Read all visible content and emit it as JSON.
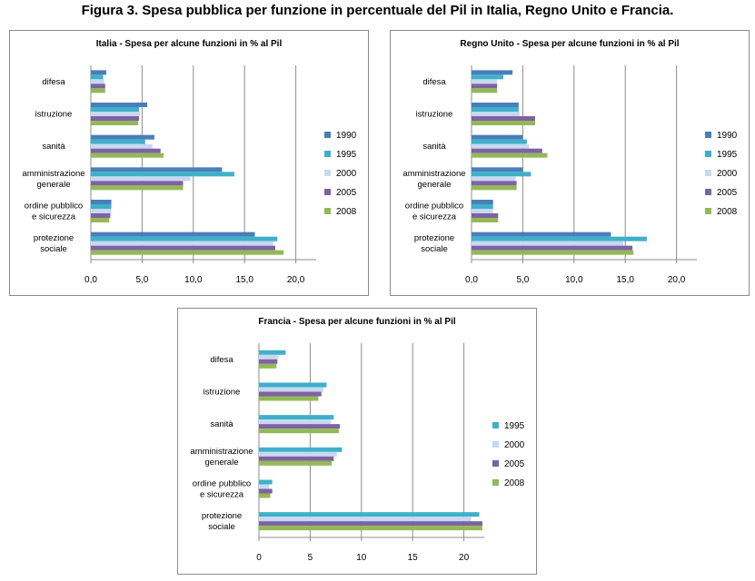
{
  "figure_title": "Figura 3. Spesa pubblica per funzione in percentuale del Pil in Italia, Regno Unito e Francia.",
  "colors": {
    "1990": "#4a7ebb",
    "1995": "#3fb0c9",
    "2000": "#c6d9f1",
    "2005": "#7f62a1",
    "2008": "#92b956",
    "grid": "#8c8c8c",
    "frame": "#8c8c8c"
  },
  "chart_data": [
    {
      "type": "bar",
      "orientation": "horizontal",
      "title": "Italia - Spesa per alcune funzioni in % al Pil",
      "categories": [
        "difesa",
        "istruzione",
        "sanità",
        "amministrazione generale",
        "ordine pubblico e sicurezza",
        "protezione sociale"
      ],
      "category_lines": [
        [
          "difesa"
        ],
        [
          "istruzione"
        ],
        [
          "sanità"
        ],
        [
          "amministrazione",
          "generale"
        ],
        [
          "ordine pubblico",
          "e sicurezza"
        ],
        [
          "protezione",
          "sociale"
        ]
      ],
      "series": [
        {
          "name": "1990",
          "values": [
            1.5,
            5.5,
            6.2,
            12.8,
            2.0,
            16.0
          ]
        },
        {
          "name": "1995",
          "values": [
            1.2,
            4.7,
            5.3,
            14.0,
            2.0,
            18.2
          ]
        },
        {
          "name": "2000",
          "values": [
            1.3,
            4.8,
            6.0,
            9.7,
            2.0,
            17.8
          ]
        },
        {
          "name": "2005",
          "values": [
            1.4,
            4.7,
            6.8,
            9.0,
            1.9,
            18.0
          ]
        },
        {
          "name": "2008",
          "values": [
            1.4,
            4.6,
            7.1,
            9.0,
            1.8,
            18.8
          ]
        }
      ],
      "xlim": [
        0,
        20
      ],
      "xticks": [
        0,
        5,
        10,
        15,
        20
      ],
      "xtick_labels": [
        "0,0",
        "5,0",
        "10,0",
        "15,0",
        "20,0"
      ],
      "plot_max": 22,
      "grid": true,
      "legend": "right"
    },
    {
      "type": "bar",
      "orientation": "horizontal",
      "title": "Regno Unito - Spesa per alcune funzioni in % al Pil",
      "categories": [
        "difesa",
        "istruzione",
        "sanità",
        "amministrazione generale",
        "ordine pubblico e sicurezza",
        "protezione sociale"
      ],
      "category_lines": [
        [
          "difesa"
        ],
        [
          "istruzione"
        ],
        [
          "sanità"
        ],
        [
          "amministrazione",
          "generale"
        ],
        [
          "ordine pubblico",
          "e sicurezza"
        ],
        [
          "protezione",
          "sociale"
        ]
      ],
      "series": [
        {
          "name": "1990",
          "values": [
            4.0,
            4.6,
            5.0,
            5.0,
            2.1,
            13.6
          ]
        },
        {
          "name": "1995",
          "values": [
            3.1,
            4.6,
            5.4,
            5.8,
            2.1,
            17.1
          ]
        },
        {
          "name": "2000",
          "values": [
            2.5,
            4.7,
            5.6,
            4.3,
            2.1,
            14.8
          ]
        },
        {
          "name": "2005",
          "values": [
            2.5,
            6.2,
            6.9,
            4.4,
            2.6,
            15.7
          ]
        },
        {
          "name": "2008",
          "values": [
            2.5,
            6.2,
            7.4,
            4.4,
            2.6,
            15.8
          ]
        }
      ],
      "xlim": [
        0,
        20
      ],
      "xticks": [
        0,
        5,
        10,
        15,
        20
      ],
      "xtick_labels": [
        "0,0",
        "5,0",
        "10,0",
        "15,0",
        "20,0"
      ],
      "plot_max": 22,
      "grid": true,
      "legend": "right"
    },
    {
      "type": "bar",
      "orientation": "horizontal",
      "title": "Francia - Spesa per alcune funzioni in % al Pil",
      "categories": [
        "difesa",
        "istruzione",
        "sanità",
        "amministrazione generale",
        "ordine pubblico e sicurezza",
        "protezione sociale"
      ],
      "category_lines": [
        [
          "difesa"
        ],
        [
          "istruzione"
        ],
        [
          "sanità"
        ],
        [
          "amministrazione",
          "generale"
        ],
        [
          "ordine pubblico",
          "e sicurezza"
        ],
        [
          "protezione",
          "sociale"
        ]
      ],
      "series": [
        {
          "name": "1995",
          "values": [
            2.6,
            6.6,
            7.3,
            8.1,
            1.3,
            21.5
          ]
        },
        {
          "name": "2000",
          "values": [
            1.9,
            6.3,
            7.0,
            7.6,
            1.0,
            20.7
          ]
        },
        {
          "name": "2005",
          "values": [
            1.8,
            6.1,
            7.9,
            7.3,
            1.3,
            21.8
          ]
        },
        {
          "name": "2008",
          "values": [
            1.7,
            5.8,
            7.8,
            7.1,
            1.1,
            21.8
          ]
        }
      ],
      "xlim": [
        0,
        20
      ],
      "xticks": [
        0,
        5,
        10,
        15,
        20
      ],
      "xtick_labels": [
        "0",
        "5",
        "10",
        "15",
        "20"
      ],
      "plot_max": 22,
      "grid": true,
      "legend": "right"
    }
  ]
}
